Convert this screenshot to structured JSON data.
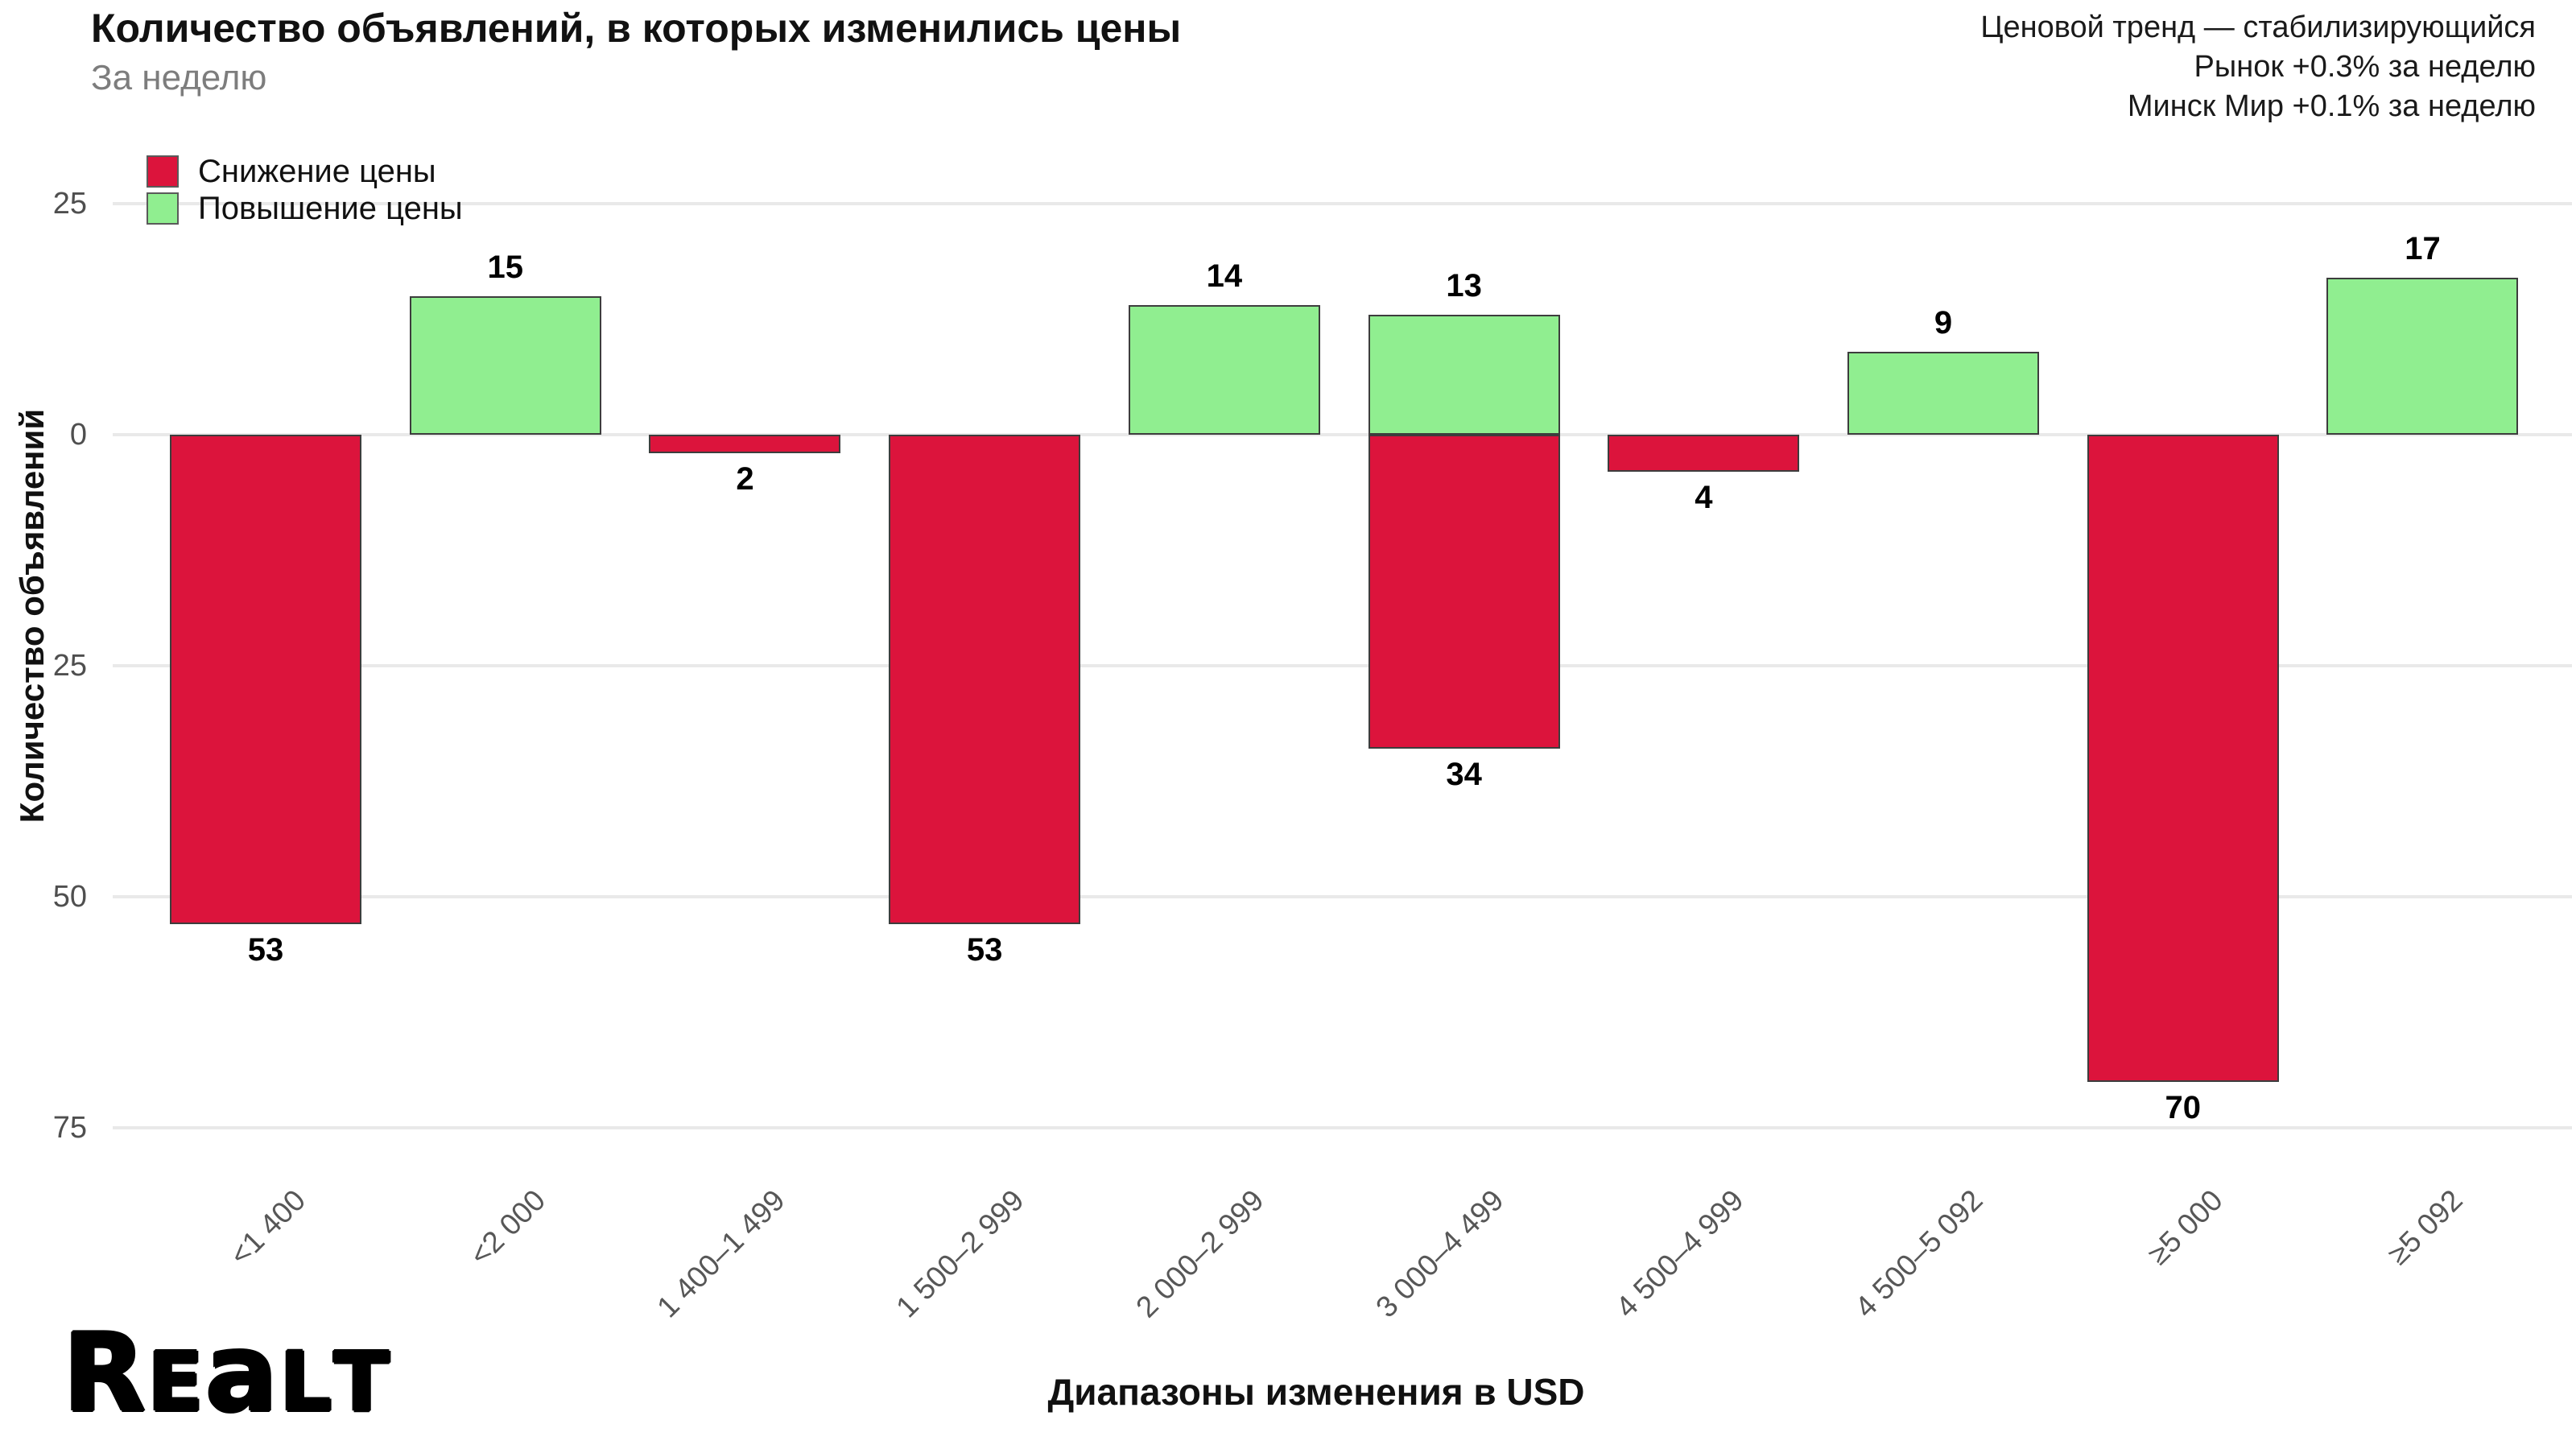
{
  "header": {
    "title": "Количество объявлений, в которых изменились цены",
    "subtitle": "За неделю"
  },
  "chart_data": {
    "type": "bar",
    "title": "Количество объявлений, в которых изменились цены",
    "subtitle": "За неделю",
    "xlabel": "Диапазоны изменения в USD",
    "ylabel": "Количество объявлений",
    "categories": [
      "<1 400",
      "<2 000",
      "1 400–1 499",
      "1 500–2 999",
      "2 000–2 999",
      "3 000–4 499",
      "4 500–4 999",
      "4 500–5 092",
      "≥5 000",
      "≥5 092"
    ],
    "series": [
      {
        "name": "Снижение цены",
        "color": "#DC143C",
        "direction": "down",
        "values": [
          53,
          0,
          2,
          53,
          0,
          34,
          4,
          0,
          70,
          0
        ]
      },
      {
        "name": "Повышение цены",
        "color": "#90EE90",
        "direction": "up",
        "values": [
          0,
          15,
          0,
          0,
          14,
          13,
          0,
          9,
          0,
          17
        ]
      }
    ],
    "y_ticks": [
      {
        "label": "25",
        "value": 25
      },
      {
        "label": "0",
        "value": 0
      },
      {
        "label": "25",
        "value": -25
      },
      {
        "label": "50",
        "value": -50
      },
      {
        "label": "75",
        "value": -75
      }
    ],
    "ylim": [
      -79,
      30
    ],
    "grid": true,
    "legend_position": "top-left",
    "annotations": [
      "Ценовой тренд — стабилизирующийся",
      "Рынок +0.3% за неделю",
      "Минск Мир +0.1% за неделю"
    ]
  },
  "footer": {
    "logo_text": "Realt"
  }
}
